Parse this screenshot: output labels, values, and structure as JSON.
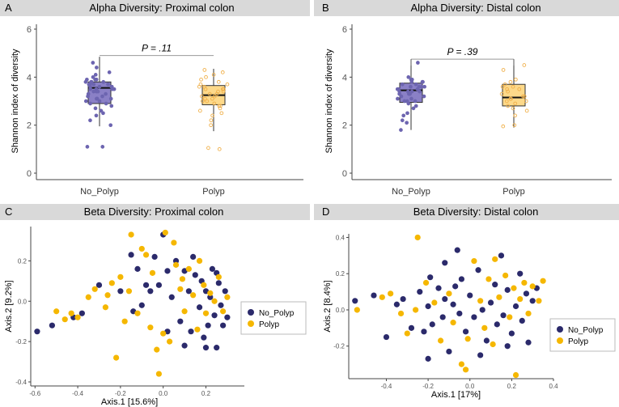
{
  "colors": {
    "no_polyp": "#2b2a6b",
    "polyp": "#f5b700",
    "no_polyp_box": "#8a80c6",
    "polyp_box": "#fdd98a",
    "no_polyp_jitter": "#6d65b0",
    "polyp_jitter": "#f0b04a",
    "banner": "#d9d9d9"
  },
  "chart_data": [
    {
      "panel": "A",
      "type": "box",
      "title": "Alpha Diversity: Proximal colon",
      "ylabel": "Shannon index of diversity",
      "xlabel": "",
      "ylim": [
        0,
        6
      ],
      "yticks": [
        0,
        2,
        4,
        6
      ],
      "categories": [
        "No_Polyp",
        "Polyp"
      ],
      "boxes": [
        {
          "name": "No_Polyp",
          "min": 1.95,
          "q1": 2.9,
          "median": 3.55,
          "q3": 3.8,
          "max": 4.85
        },
        {
          "name": "Polyp",
          "min": 1.75,
          "q1": 2.85,
          "median": 3.25,
          "q3": 3.65,
          "max": 4.35
        }
      ],
      "points": [
        [
          3.1,
          3.6,
          3.9,
          3.4,
          2.8,
          3.7,
          4.1,
          3.0,
          2.5,
          3.8,
          3.3,
          3.5,
          3.9,
          2.2,
          3.6,
          4.0,
          3.2,
          2.9,
          3.7,
          3.4,
          3.8,
          2.0,
          3.5,
          4.2,
          3.1,
          3.6,
          2.6,
          3.9,
          3.3,
          1.1,
          1.1,
          3.7,
          4.4,
          3.0,
          3.5,
          2.7,
          3.8,
          3.2,
          3.6,
          4.6,
          3.9,
          3.4,
          2.4,
          3.7,
          3.1,
          3.5,
          3.8,
          2.9
        ],
        [
          3.0,
          3.4,
          2.8,
          3.7,
          4.0,
          3.2,
          2.5,
          3.5,
          2.9,
          3.8,
          3.1,
          2.2,
          3.6,
          3.3,
          4.3,
          2.7,
          3.5,
          3.0,
          1.0,
          1.05,
          3.9,
          3.2,
          2.4,
          3.6,
          3.4,
          2.8,
          4.1,
          3.1,
          2.0,
          3.7,
          3.3,
          2.6,
          3.5,
          4.2
        ]
      ],
      "annotation": "P = .11"
    },
    {
      "panel": "B",
      "type": "box",
      "title": "Alpha Diversity: Distal colon",
      "ylabel": "Shannon index of diversity",
      "xlabel": "",
      "ylim": [
        0,
        6
      ],
      "yticks": [
        0,
        2,
        4,
        6
      ],
      "categories": [
        "No_Polyp",
        "Polyp"
      ],
      "boxes": [
        {
          "name": "No_Polyp",
          "min": 1.8,
          "q1": 2.95,
          "median": 3.45,
          "q3": 3.75,
          "max": 4.6
        },
        {
          "name": "Polyp",
          "min": 1.9,
          "q1": 2.8,
          "median": 3.15,
          "q3": 3.7,
          "max": 4.5
        }
      ],
      "points": [
        [
          3.2,
          3.6,
          3.0,
          3.8,
          3.4,
          2.7,
          3.5,
          3.9,
          2.4,
          3.3,
          3.7,
          3.1,
          2.9,
          3.6,
          3.4,
          4.0,
          2.2,
          3.5,
          3.8,
          3.0,
          3.3,
          1.8,
          3.6,
          3.2,
          4.6,
          3.4,
          2.8,
          3.7,
          3.1,
          3.5,
          2.5,
          3.9,
          3.3,
          3.0,
          3.6,
          2.1,
          3.4,
          3.8
        ],
        [
          3.1,
          3.5,
          2.8,
          3.9,
          3.2,
          2.4,
          3.6,
          3.0,
          4.3,
          2.9,
          3.4,
          2.0,
          3.7,
          3.1,
          3.3,
          4.5,
          2.6,
          3.5,
          3.0,
          3.8,
          2.7,
          3.2,
          1.95,
          3.6
        ]
      ],
      "annotation": "P = .39"
    },
    {
      "panel": "C",
      "type": "scatter",
      "title": "Beta Diversity: Proximal colon",
      "xlabel": "Axis.1  [15.6%]",
      "ylabel": "Axis.2  [9.2%]",
      "xlim": [
        -0.62,
        0.38
      ],
      "ylim": [
        -0.42,
        0.37
      ],
      "xticks": [
        -0.6,
        -0.4,
        -0.2,
        0.0,
        0.2
      ],
      "yticks": [
        -0.4,
        -0.2,
        0.0,
        0.2
      ],
      "legend": [
        "No_Polyp",
        "Polyp"
      ],
      "series": [
        {
          "name": "No_Polyp",
          "points": [
            [
              -0.59,
              -0.15
            ],
            [
              -0.52,
              -0.12
            ],
            [
              -0.42,
              -0.08
            ],
            [
              -0.38,
              -0.06
            ],
            [
              -0.3,
              0.08
            ],
            [
              -0.15,
              0.23
            ],
            [
              -0.12,
              0.16
            ],
            [
              -0.1,
              -0.02
            ],
            [
              -0.08,
              0.08
            ],
            [
              -0.06,
              0.05
            ],
            [
              -0.04,
              0.22
            ],
            [
              0.0,
              0.33
            ],
            [
              0.02,
              0.15
            ],
            [
              0.04,
              0.02
            ],
            [
              0.06,
              0.2
            ],
            [
              0.08,
              -0.1
            ],
            [
              0.1,
              0.15
            ],
            [
              0.12,
              0.05
            ],
            [
              0.13,
              -0.15
            ],
            [
              0.14,
              0.22
            ],
            [
              0.15,
              0.13
            ],
            [
              0.17,
              -0.03
            ],
            [
              0.18,
              0.1
            ],
            [
              0.19,
              -0.18
            ],
            [
              0.2,
              0.05
            ],
            [
              0.21,
              -0.12
            ],
            [
              0.22,
              0.02
            ],
            [
              0.23,
              0.16
            ],
            [
              0.24,
              -0.07
            ],
            [
              0.25,
              -0.23
            ],
            [
              0.26,
              0.09
            ],
            [
              0.27,
              -0.02
            ],
            [
              0.28,
              -0.12
            ],
            [
              0.29,
              0.05
            ],
            [
              0.3,
              -0.08
            ],
            [
              -0.2,
              0.05
            ],
            [
              -0.14,
              -0.05
            ],
            [
              0.02,
              -0.15
            ],
            [
              0.1,
              -0.22
            ],
            [
              0.2,
              -0.23
            ],
            [
              0.25,
              0.14
            ],
            [
              -0.02,
              0.08
            ]
          ]
        },
        {
          "name": "Polyp",
          "points": [
            [
              -0.5,
              -0.05
            ],
            [
              -0.46,
              -0.09
            ],
            [
              -0.43,
              -0.06
            ],
            [
              -0.4,
              -0.08
            ],
            [
              -0.35,
              0.02
            ],
            [
              -0.32,
              0.06
            ],
            [
              -0.27,
              -0.03
            ],
            [
              -0.24,
              0.09
            ],
            [
              -0.22,
              -0.28
            ],
            [
              -0.2,
              0.12
            ],
            [
              -0.18,
              -0.1
            ],
            [
              -0.16,
              0.05
            ],
            [
              -0.15,
              0.33
            ],
            [
              -0.12,
              -0.06
            ],
            [
              -0.1,
              0.26
            ],
            [
              -0.08,
              0.23
            ],
            [
              -0.06,
              -0.13
            ],
            [
              -0.05,
              0.14
            ],
            [
              -0.03,
              -0.24
            ],
            [
              -0.02,
              -0.36
            ],
            [
              0.0,
              -0.16
            ],
            [
              0.01,
              0.34
            ],
            [
              0.03,
              -0.2
            ],
            [
              0.05,
              0.29
            ],
            [
              0.06,
              0.18
            ],
            [
              0.08,
              0.06
            ],
            [
              0.1,
              -0.05
            ],
            [
              0.12,
              0.16
            ],
            [
              0.14,
              0.03
            ],
            [
              0.16,
              -0.14
            ],
            [
              0.17,
              0.2
            ],
            [
              0.19,
              0.08
            ],
            [
              0.2,
              -0.06
            ],
            [
              0.22,
              0.04
            ],
            [
              0.24,
              0.0
            ],
            [
              0.26,
              0.12
            ],
            [
              0.28,
              -0.05
            ],
            [
              0.3,
              0.02
            ],
            [
              -0.26,
              0.03
            ],
            [
              0.09,
              0.11
            ]
          ]
        }
      ]
    },
    {
      "panel": "D",
      "type": "scatter",
      "title": "Beta Diversity: Distal colon",
      "xlabel": "Axis.1   [17%]",
      "ylabel": "Axis.2  [8.4%]",
      "xlim": [
        -0.58,
        0.4
      ],
      "ylim": [
        -0.38,
        0.42
      ],
      "xticks": [
        -0.4,
        -0.2,
        0.0,
        0.2,
        0.4
      ],
      "yticks": [
        -0.2,
        0.0,
        0.2,
        0.4
      ],
      "legend": [
        "No_Polyp",
        "Polyp"
      ],
      "series": [
        {
          "name": "No_Polyp",
          "points": [
            [
              -0.55,
              0.05
            ],
            [
              -0.46,
              0.08
            ],
            [
              -0.4,
              -0.15
            ],
            [
              -0.35,
              0.03
            ],
            [
              -0.32,
              0.06
            ],
            [
              -0.28,
              -0.1
            ],
            [
              -0.24,
              0.1
            ],
            [
              -0.22,
              -0.12
            ],
            [
              -0.2,
              0.02
            ],
            [
              -0.19,
              0.18
            ],
            [
              -0.18,
              -0.08
            ],
            [
              -0.15,
              0.12
            ],
            [
              -0.13,
              -0.04
            ],
            [
              -0.12,
              0.06
            ],
            [
              -0.1,
              -0.23
            ],
            [
              -0.08,
              0.03
            ],
            [
              -0.07,
              0.13
            ],
            [
              -0.06,
              0.33
            ],
            [
              -0.05,
              -0.02
            ],
            [
              -0.04,
              0.17
            ],
            [
              -0.02,
              -0.12
            ],
            [
              0.0,
              0.08
            ],
            [
              0.02,
              -0.04
            ],
            [
              0.04,
              0.22
            ],
            [
              0.06,
              0.0
            ],
            [
              0.08,
              -0.17
            ],
            [
              0.1,
              0.04
            ],
            [
              0.12,
              0.14
            ],
            [
              0.13,
              -0.08
            ],
            [
              0.15,
              0.3
            ],
            [
              0.16,
              -0.03
            ],
            [
              0.18,
              0.11
            ],
            [
              0.2,
              -0.13
            ],
            [
              0.22,
              0.02
            ],
            [
              0.24,
              0.2
            ],
            [
              0.25,
              -0.06
            ],
            [
              0.27,
              0.09
            ],
            [
              0.28,
              -0.18
            ],
            [
              0.3,
              0.05
            ],
            [
              0.32,
              0.12
            ],
            [
              -0.2,
              -0.27
            ],
            [
              -0.12,
              0.26
            ],
            [
              0.05,
              -0.25
            ],
            [
              0.18,
              -0.2
            ]
          ]
        },
        {
          "name": "Polyp",
          "points": [
            [
              -0.54,
              0.0
            ],
            [
              -0.42,
              0.07
            ],
            [
              -0.38,
              0.09
            ],
            [
              -0.33,
              -0.02
            ],
            [
              -0.3,
              -0.13
            ],
            [
              -0.26,
              0.0
            ],
            [
              -0.25,
              0.4
            ],
            [
              -0.21,
              0.15
            ],
            [
              -0.17,
              0.04
            ],
            [
              -0.14,
              -0.17
            ],
            [
              -0.1,
              0.09
            ],
            [
              -0.08,
              -0.07
            ],
            [
              -0.04,
              -0.3
            ],
            [
              -0.01,
              -0.16
            ],
            [
              0.02,
              0.27
            ],
            [
              0.05,
              0.05
            ],
            [
              0.07,
              -0.1
            ],
            [
              0.09,
              0.17
            ],
            [
              0.11,
              -0.19
            ],
            [
              0.14,
              0.07
            ],
            [
              0.17,
              0.19
            ],
            [
              0.19,
              -0.04
            ],
            [
              0.21,
              0.12
            ],
            [
              0.22,
              -0.36
            ],
            [
              0.24,
              0.06
            ],
            [
              0.26,
              0.15
            ],
            [
              0.28,
              -0.02
            ],
            [
              0.3,
              0.13
            ],
            [
              0.33,
              0.05
            ],
            [
              0.35,
              0.16
            ],
            [
              -0.02,
              -0.33
            ],
            [
              0.12,
              0.28
            ]
          ]
        }
      ]
    }
  ]
}
